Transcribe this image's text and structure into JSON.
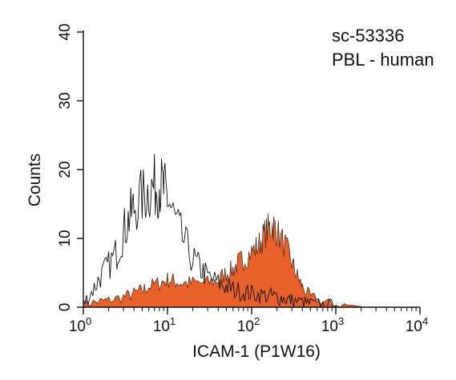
{
  "chart_data": {
    "type": "area",
    "title": "",
    "xlabel": "ICAM-1 (P1W16)",
    "ylabel": "Counts",
    "xscale": "log",
    "xlim": [
      1,
      10000
    ],
    "ylim": [
      0,
      40
    ],
    "x_ticks": [
      {
        "base": "10",
        "exp": "0"
      },
      {
        "base": "10",
        "exp": "1"
      },
      {
        "base": "10",
        "exp": "2"
      },
      {
        "base": "10",
        "exp": "3"
      },
      {
        "base": "10",
        "exp": "4"
      }
    ],
    "y_ticks": [
      "0",
      "10",
      "20",
      "30",
      "40"
    ],
    "annotations": [
      "sc-53336",
      "PBL - human"
    ],
    "grid": false,
    "legend": "none",
    "series": [
      {
        "style": "open-outline",
        "color": "#111111",
        "x": [
          1.0,
          1.3,
          1.6,
          2.0,
          2.5,
          3.0,
          3.5,
          4.0,
          5.0,
          6.0,
          7.0,
          8.0,
          9.0,
          10.0,
          12.0,
          15.0,
          20.0,
          25.0,
          30.0,
          40.0,
          50.0,
          60.0,
          80.0,
          100.0,
          130.0,
          170.0,
          200.0,
          250.0,
          300.0,
          400.0,
          500.0,
          700.0,
          1000.0
        ],
        "values": [
          0.5,
          2.5,
          4.5,
          6.0,
          8.0,
          11.0,
          13.0,
          14.5,
          16.0,
          17.0,
          17.5,
          18.0,
          17.0,
          16.0,
          13.0,
          10.0,
          7.0,
          5.5,
          4.5,
          3.5,
          3.0,
          2.6,
          2.2,
          2.0,
          1.8,
          1.6,
          1.5,
          1.2,
          1.0,
          0.7,
          0.5,
          0.3,
          0.2
        ]
      },
      {
        "style": "filled",
        "color": "#e8602a",
        "x": [
          1.0,
          1.5,
          2.0,
          3.0,
          4.0,
          5.0,
          6.0,
          8.0,
          10.0,
          12.0,
          15.0,
          20.0,
          30.0,
          40.0,
          50.0,
          60.0,
          70.0,
          80.0,
          100.0,
          120.0,
          140.0,
          160.0,
          180.0,
          200.0,
          250.0,
          300.0,
          350.0,
          400.0,
          500.0,
          700.0,
          1000.0,
          2000.0
        ],
        "values": [
          0.5,
          0.8,
          1.0,
          1.5,
          2.0,
          2.5,
          3.0,
          3.5,
          4.0,
          3.8,
          3.5,
          3.5,
          3.5,
          4.0,
          5.0,
          5.5,
          6.5,
          7.0,
          8.0,
          9.0,
          10.5,
          11.5,
          12.0,
          11.0,
          9.0,
          6.5,
          4.5,
          3.0,
          1.5,
          0.8,
          0.4,
          0.1
        ]
      }
    ]
  }
}
